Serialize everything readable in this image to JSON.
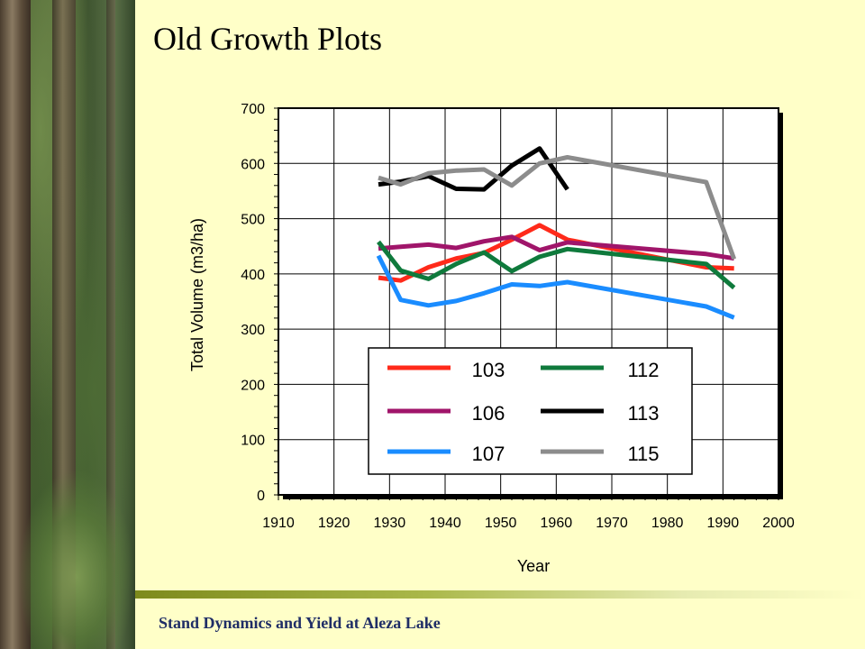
{
  "slide": {
    "title": "Old Growth Plots",
    "footer": "Stand Dynamics and Yield at Aleza Lake"
  },
  "chart_data": {
    "type": "line",
    "xlabel": "Year",
    "ylabel": "Total Volume (m3/ha)",
    "xlim": [
      1910,
      2000
    ],
    "ylim": [
      0,
      700
    ],
    "xticks": [
      1910,
      1920,
      1930,
      1940,
      1950,
      1960,
      1970,
      1980,
      1990,
      2000
    ],
    "yticks": [
      0,
      100,
      200,
      300,
      400,
      500,
      600,
      700
    ],
    "grid": true,
    "legend_position": "inside, lower center",
    "series": [
      {
        "name": "103",
        "color": "#ff2a1a",
        "x": [
          1928,
          1932,
          1937,
          1942,
          1947,
          1952,
          1957,
          1962,
          1987,
          1992
        ],
        "y": [
          393,
          388,
          412,
          428,
          438,
          462,
          488,
          462,
          412,
          410
        ]
      },
      {
        "name": "106",
        "color": "#a0156a",
        "x": [
          1928,
          1932,
          1937,
          1942,
          1947,
          1952,
          1957,
          1962,
          1987,
          1992
        ],
        "y": [
          446,
          449,
          453,
          447,
          459,
          467,
          443,
          457,
          436,
          428
        ]
      },
      {
        "name": "107",
        "color": "#1a8cff",
        "x": [
          1928,
          1932,
          1937,
          1942,
          1947,
          1952,
          1957,
          1962,
          1987,
          1992
        ],
        "y": [
          433,
          353,
          343,
          351,
          365,
          381,
          378,
          385,
          341,
          321
        ]
      },
      {
        "name": "112",
        "color": "#0f7a3c",
        "x": [
          1928,
          1932,
          1937,
          1942,
          1947,
          1952,
          1957,
          1962,
          1987,
          1992
        ],
        "y": [
          458,
          406,
          391,
          418,
          439,
          405,
          431,
          445,
          418,
          375
        ]
      },
      {
        "name": "113",
        "color": "#000000",
        "x": [
          1928,
          1932,
          1937,
          1942,
          1947,
          1952,
          1957,
          1962
        ],
        "y": [
          562,
          567,
          577,
          554,
          553,
          596,
          627,
          553
        ]
      },
      {
        "name": "115",
        "color": "#8c8c8c",
        "x": [
          1928,
          1932,
          1937,
          1942,
          1947,
          1952,
          1957,
          1962,
          1987,
          1992
        ],
        "y": [
          574,
          562,
          582,
          587,
          589,
          560,
          600,
          611,
          566,
          427
        ]
      }
    ]
  }
}
